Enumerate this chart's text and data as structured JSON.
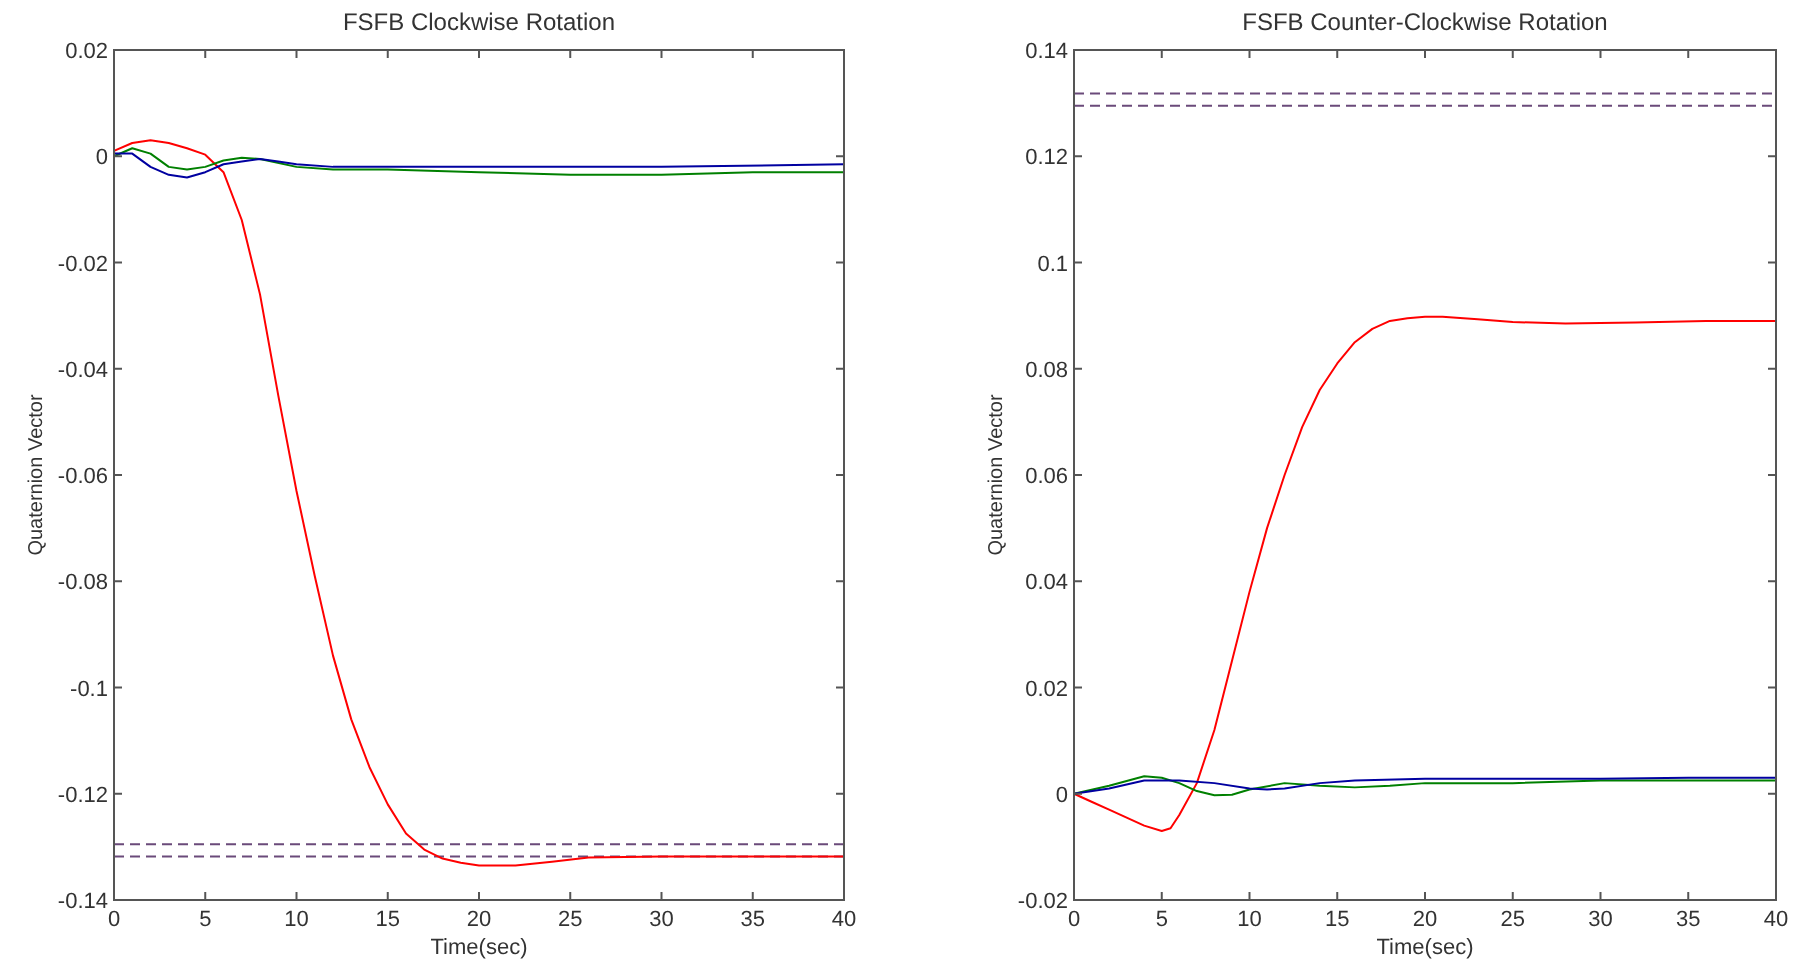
{
  "chart_data": [
    {
      "type": "line",
      "title": "FSFB Clockwise Rotation",
      "xlabel": "Time(sec)",
      "ylabel": "Quaternion Vector",
      "xlim": [
        0,
        40
      ],
      "ylim": [
        -0.14,
        0.02
      ],
      "xticks": [
        0,
        5,
        10,
        15,
        20,
        25,
        30,
        35,
        40
      ],
      "yticks": [
        -0.14,
        -0.12,
        -0.1,
        -0.08,
        -0.06,
        -0.04,
        -0.02,
        0,
        0.02
      ],
      "grid": false,
      "line_style": "solid",
      "marker": "none",
      "ref_lines": [
        {
          "axis": "y",
          "value": -0.1295,
          "color": "#6a4a7a",
          "line_style": "dashed"
        },
        {
          "axis": "y",
          "value": -0.1318,
          "color": "#6a4a7a",
          "line_style": "dashed"
        }
      ],
      "series": [
        {
          "color": "#ff0000",
          "x": [
            0,
            1,
            2,
            3,
            4,
            5,
            6,
            7,
            8,
            9,
            10,
            11,
            12,
            13,
            14,
            15,
            16,
            17,
            18,
            19,
            20,
            22,
            24,
            26,
            30,
            35,
            40
          ],
          "values": [
            0.001,
            0.0025,
            0.003,
            0.0025,
            0.0015,
            0.0003,
            -0.003,
            -0.012,
            -0.026,
            -0.045,
            -0.063,
            -0.079,
            -0.094,
            -0.106,
            -0.115,
            -0.122,
            -0.1275,
            -0.1305,
            -0.1322,
            -0.133,
            -0.1335,
            -0.1335,
            -0.1328,
            -0.132,
            -0.1318,
            -0.1318,
            -0.1318
          ]
        },
        {
          "color": "#008000",
          "x": [
            0,
            1,
            2,
            3,
            4,
            5,
            6,
            7,
            8,
            10,
            12,
            15,
            20,
            25,
            30,
            35,
            40
          ],
          "values": [
            0,
            0.0015,
            0.0005,
            -0.002,
            -0.0025,
            -0.002,
            -0.0008,
            -0.0003,
            -0.0005,
            -0.002,
            -0.0025,
            -0.0025,
            -0.003,
            -0.0035,
            -0.0035,
            -0.003,
            -0.003
          ]
        },
        {
          "color": "#0000a0",
          "x": [
            0,
            1,
            2,
            3,
            4,
            5,
            6,
            7,
            8,
            9,
            10,
            12,
            15,
            20,
            30,
            40
          ],
          "values": [
            0.0005,
            0.0005,
            -0.002,
            -0.0035,
            -0.004,
            -0.003,
            -0.0015,
            -0.001,
            -0.0005,
            -0.001,
            -0.0015,
            -0.002,
            -0.002,
            -0.002,
            -0.002,
            -0.0015
          ]
        }
      ]
    },
    {
      "type": "line",
      "title": "FSFB Counter-Clockwise Rotation",
      "xlabel": "Time(sec)",
      "ylabel": "Quaternion Vector",
      "xlim": [
        0,
        40
      ],
      "ylim": [
        -0.02,
        0.14
      ],
      "xticks": [
        0,
        5,
        10,
        15,
        20,
        25,
        30,
        35,
        40
      ],
      "yticks": [
        -0.02,
        0,
        0.02,
        0.04,
        0.06,
        0.08,
        0.1,
        0.12,
        0.14
      ],
      "grid": false,
      "line_style": "solid",
      "marker": "none",
      "ref_lines": [
        {
          "axis": "y",
          "value": 0.1318,
          "color": "#6a4a7a",
          "line_style": "dashed"
        },
        {
          "axis": "y",
          "value": 0.1295,
          "color": "#6a4a7a",
          "line_style": "dashed"
        }
      ],
      "series": [
        {
          "color": "#ff0000",
          "x": [
            0,
            1,
            2,
            3,
            4,
            5,
            5.5,
            6,
            7,
            8,
            9,
            10,
            11,
            12,
            13,
            14,
            15,
            16,
            17,
            18,
            19,
            20,
            21,
            23,
            25,
            28,
            32,
            36,
            40
          ],
          "values": [
            0,
            -0.0015,
            -0.003,
            -0.0045,
            -0.006,
            -0.007,
            -0.0065,
            -0.004,
            0.002,
            0.012,
            0.025,
            0.038,
            0.05,
            0.06,
            0.069,
            0.076,
            0.081,
            0.085,
            0.0875,
            0.089,
            0.0895,
            0.0898,
            0.0898,
            0.0893,
            0.0888,
            0.0885,
            0.0887,
            0.089,
            0.089
          ]
        },
        {
          "color": "#008000",
          "x": [
            0,
            2,
            4,
            5,
            6,
            7,
            8,
            9,
            10,
            12,
            14,
            16,
            18,
            20,
            25,
            30,
            40
          ],
          "values": [
            0,
            0.0015,
            0.0033,
            0.003,
            0.002,
            0.0005,
            -0.0003,
            -0.0002,
            0.0008,
            0.002,
            0.0015,
            0.0012,
            0.0015,
            0.002,
            0.002,
            0.0025,
            0.0025
          ]
        },
        {
          "color": "#0000a0",
          "x": [
            0,
            2,
            4,
            6,
            8,
            10,
            11,
            12,
            14,
            16,
            20,
            25,
            30,
            35,
            40
          ],
          "values": [
            0,
            0.001,
            0.0025,
            0.0025,
            0.002,
            0.001,
            0.0008,
            0.001,
            0.002,
            0.0025,
            0.0028,
            0.0028,
            0.0028,
            0.003,
            0.003
          ]
        }
      ]
    }
  ]
}
